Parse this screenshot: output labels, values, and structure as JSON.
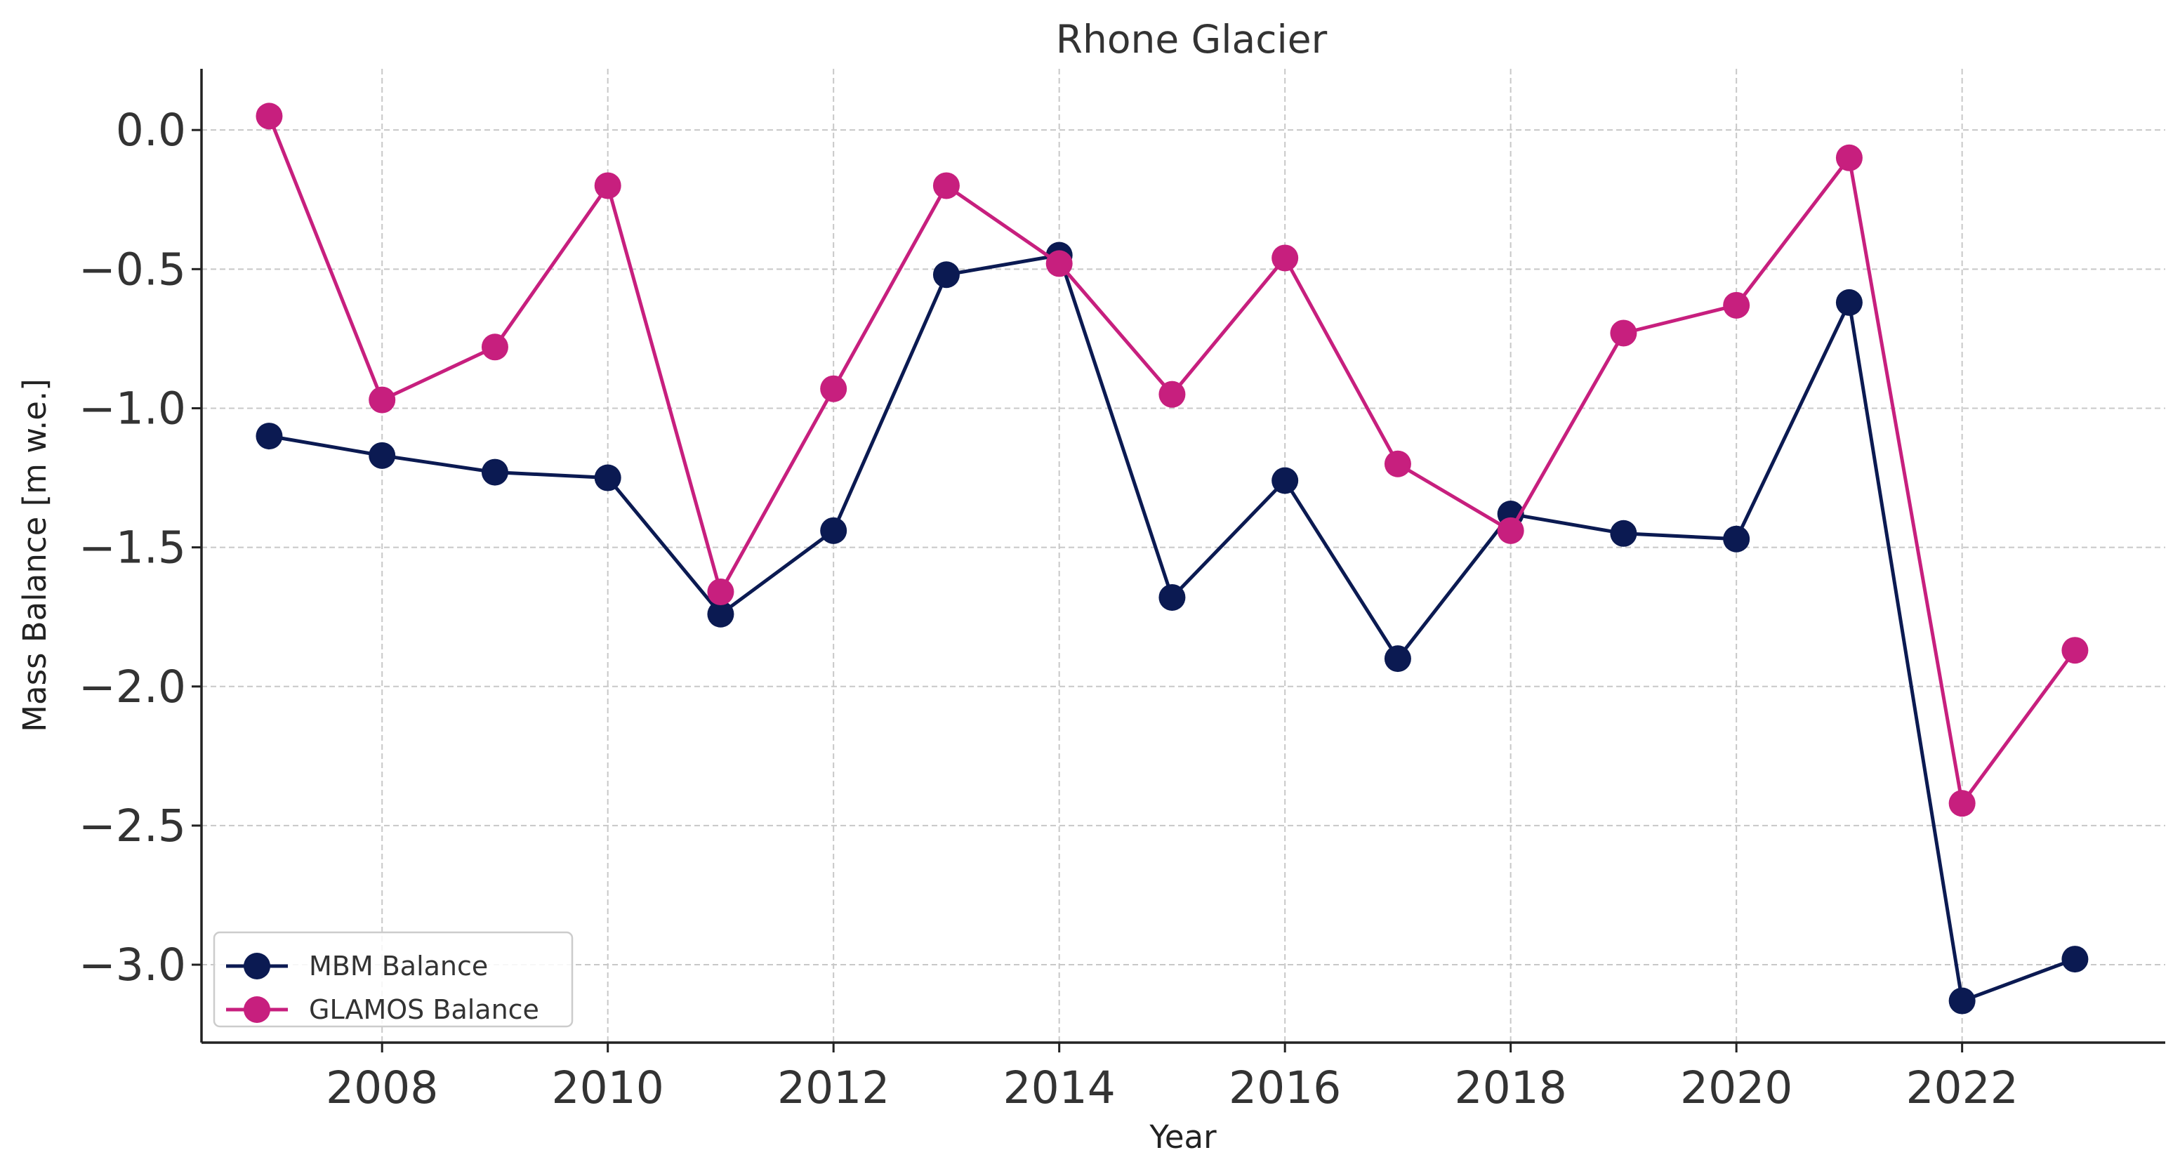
{
  "chart_data": {
    "type": "line",
    "title": "Rhone Glacier",
    "xlabel": "Year",
    "ylabel": "Mass Balance [m w.e.]",
    "xlim": [
      2006.4,
      2023.8
    ],
    "ylim": [
      -3.28,
      0.22
    ],
    "xticks": [
      2008,
      2010,
      2012,
      2014,
      2016,
      2018,
      2020,
      2022
    ],
    "yticks": [
      0.0,
      -0.5,
      -1.0,
      -1.5,
      -2.0,
      -2.5,
      -3.0
    ],
    "ytick_labels": [
      "0.0",
      "−0.5",
      "−1.0",
      "−1.5",
      "−2.0",
      "−2.5",
      "−3.0"
    ],
    "grid": true,
    "legend_position": "lower-left",
    "x": [
      2007,
      2008,
      2009,
      2010,
      2011,
      2012,
      2013,
      2014,
      2015,
      2016,
      2017,
      2018,
      2019,
      2020,
      2021,
      2022,
      2023
    ],
    "series": [
      {
        "name": "MBM Balance",
        "color": "#0b1a52",
        "values": [
          -1.1,
          -1.17,
          -1.23,
          -1.25,
          -1.74,
          -1.44,
          -0.52,
          -0.45,
          -1.68,
          -1.26,
          -1.9,
          -1.38,
          -1.45,
          -1.47,
          -0.62,
          -3.13,
          -2.98
        ]
      },
      {
        "name": "GLAMOS Balance",
        "color": "#c71f7e",
        "values": [
          0.05,
          -0.97,
          -0.78,
          -0.2,
          -1.66,
          -0.93,
          -0.2,
          -0.48,
          -0.95,
          -0.46,
          -1.2,
          -1.44,
          -0.73,
          -0.63,
          -0.1,
          -2.42,
          -1.87
        ]
      }
    ]
  }
}
